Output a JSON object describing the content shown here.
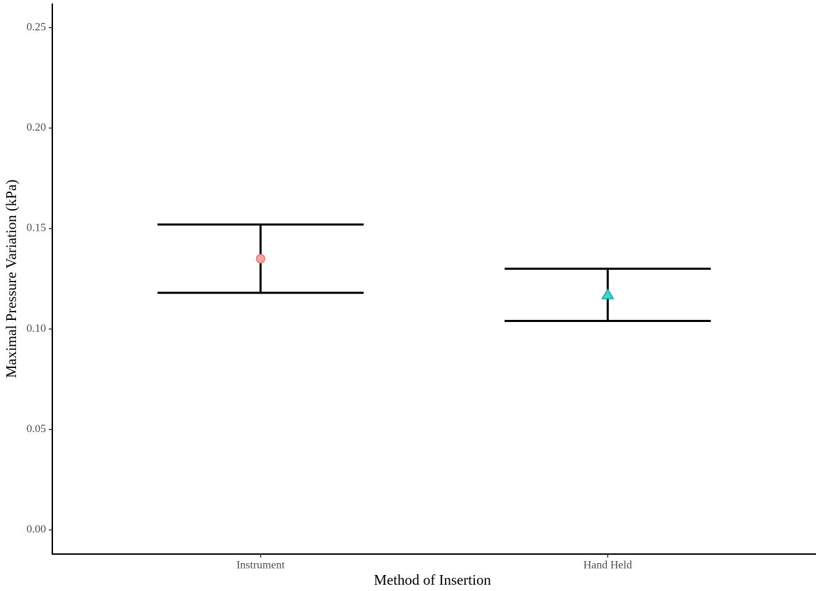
{
  "chart_data": {
    "type": "errorbar",
    "x_label": "Method of Insertion",
    "y_label": "Maximal Pressure Variation (kPa)",
    "categories": [
      "Instrument",
      "Hand Held"
    ],
    "values": [
      0.135,
      0.117
    ],
    "lower": [
      0.118,
      0.104
    ],
    "upper": [
      0.152,
      0.13
    ],
    "markers": [
      "circle",
      "triangle"
    ],
    "colors": [
      "#f8a3a0",
      "#3fd3d3"
    ],
    "ylim": [
      -0.012,
      0.262
    ],
    "yticks": [
      {
        "value": 0,
        "label": "0.00"
      },
      0.05,
      {
        "value": 0.1,
        "label": "0.10"
      },
      0.15,
      {
        "value": 0.2,
        "label": "0.20"
      },
      0.25
    ]
  }
}
